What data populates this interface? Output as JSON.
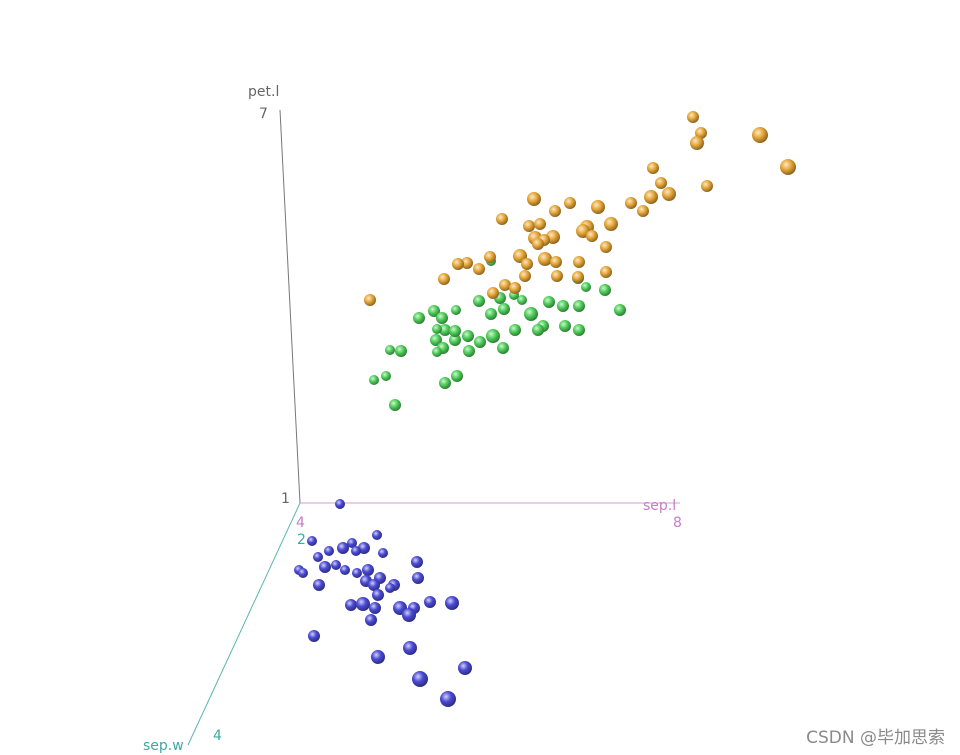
{
  "chart_data": {
    "type": "scatter",
    "subtype": "3d-scatter",
    "axes": {
      "x": {
        "label": "sep.l",
        "ticks": [
          "4",
          "8"
        ],
        "range": [
          4,
          8
        ],
        "color": "#c77cc7"
      },
      "y": {
        "label": "sep.w",
        "ticks": [
          "2",
          "4"
        ],
        "range": [
          2,
          4
        ],
        "color": "#3fa8a2"
      },
      "z": {
        "label": "pet.l",
        "ticks": [
          "1",
          "7"
        ],
        "range": [
          1,
          7
        ],
        "color": "#666666"
      }
    },
    "series": [
      {
        "color": "#4b4bd6",
        "points": [
          [
            340,
            504,
            5
          ],
          [
            377,
            535,
            5
          ],
          [
            312,
            541,
            5
          ],
          [
            364,
            548,
            6
          ],
          [
            352,
            543,
            5
          ],
          [
            343,
            548,
            6
          ],
          [
            329,
            551,
            5
          ],
          [
            356,
            551,
            5
          ],
          [
            383,
            553,
            5
          ],
          [
            318,
            557,
            5
          ],
          [
            417,
            562,
            6
          ],
          [
            336,
            565,
            5
          ],
          [
            325,
            567,
            6
          ],
          [
            299,
            570,
            5
          ],
          [
            368,
            570,
            6
          ],
          [
            303,
            573,
            5
          ],
          [
            345,
            570,
            5
          ],
          [
            357,
            573,
            5
          ],
          [
            380,
            578,
            6
          ],
          [
            418,
            578,
            6
          ],
          [
            366,
            581,
            6
          ],
          [
            319,
            585,
            6
          ],
          [
            394,
            585,
            6
          ],
          [
            374,
            585,
            6
          ],
          [
            390,
            588,
            5
          ],
          [
            378,
            595,
            6
          ],
          [
            351,
            605,
            6
          ],
          [
            363,
            604,
            7
          ],
          [
            375,
            608,
            6
          ],
          [
            400,
            608,
            7
          ],
          [
            414,
            608,
            6
          ],
          [
            430,
            602,
            6
          ],
          [
            452,
            603,
            7
          ],
          [
            409,
            615,
            7
          ],
          [
            371,
            620,
            6
          ],
          [
            314,
            636,
            6
          ],
          [
            378,
            657,
            7
          ],
          [
            410,
            648,
            7
          ],
          [
            465,
            668,
            7
          ],
          [
            420,
            679,
            8
          ],
          [
            448,
            699,
            8
          ]
        ]
      },
      {
        "color": "#4fd05a",
        "points": [
          [
            491,
            261,
            5
          ],
          [
            522,
            300,
            5
          ],
          [
            434,
            311,
            6
          ],
          [
            456,
            310,
            5
          ],
          [
            419,
            318,
            6
          ],
          [
            442,
            318,
            6
          ],
          [
            479,
            301,
            6
          ],
          [
            500,
            298,
            6
          ],
          [
            514,
            295,
            5
          ],
          [
            549,
            302,
            6
          ],
          [
            563,
            306,
            6
          ],
          [
            579,
            306,
            6
          ],
          [
            578,
            278,
            6
          ],
          [
            586,
            287,
            5
          ],
          [
            605,
            290,
            6
          ],
          [
            620,
            310,
            6
          ],
          [
            491,
            314,
            6
          ],
          [
            504,
            309,
            6
          ],
          [
            531,
            314,
            7
          ],
          [
            543,
            326,
            6
          ],
          [
            538,
            330,
            6
          ],
          [
            565,
            326,
            6
          ],
          [
            579,
            330,
            6
          ],
          [
            515,
            330,
            6
          ],
          [
            493,
            336,
            7
          ],
          [
            480,
            342,
            6
          ],
          [
            468,
            336,
            6
          ],
          [
            455,
            340,
            6
          ],
          [
            445,
            330,
            6
          ],
          [
            437,
            329,
            5
          ],
          [
            436,
            340,
            6
          ],
          [
            443,
            348,
            6
          ],
          [
            437,
            352,
            5
          ],
          [
            469,
            351,
            6
          ],
          [
            503,
            348,
            6
          ],
          [
            390,
            350,
            5
          ],
          [
            401,
            351,
            6
          ],
          [
            374,
            380,
            5
          ],
          [
            386,
            376,
            5
          ],
          [
            445,
            383,
            6
          ],
          [
            457,
            376,
            6
          ],
          [
            395,
            405,
            6
          ],
          [
            455,
            331,
            6
          ]
        ]
      },
      {
        "color": "#e8a838",
        "points": [
          [
            693,
            117,
            6
          ],
          [
            701,
            133,
            6
          ],
          [
            697,
            143,
            7
          ],
          [
            760,
            135,
            8
          ],
          [
            788,
            167,
            8
          ],
          [
            653,
            168,
            6
          ],
          [
            661,
            183,
            6
          ],
          [
            669,
            194,
            7
          ],
          [
            707,
            186,
            6
          ],
          [
            651,
            197,
            7
          ],
          [
            643,
            211,
            6
          ],
          [
            631,
            203,
            6
          ],
          [
            598,
            207,
            7
          ],
          [
            611,
            224,
            7
          ],
          [
            587,
            227,
            7
          ],
          [
            583,
            231,
            7
          ],
          [
            592,
            236,
            6
          ],
          [
            606,
            247,
            6
          ],
          [
            570,
            203,
            6
          ],
          [
            555,
            211,
            6
          ],
          [
            534,
            199,
            7
          ],
          [
            502,
            219,
            6
          ],
          [
            529,
            226,
            6
          ],
          [
            540,
            224,
            6
          ],
          [
            553,
            237,
            7
          ],
          [
            535,
            238,
            7
          ],
          [
            544,
            240,
            6
          ],
          [
            538,
            244,
            6
          ],
          [
            520,
            256,
            7
          ],
          [
            545,
            259,
            7
          ],
          [
            556,
            262,
            6
          ],
          [
            579,
            262,
            6
          ],
          [
            606,
            272,
            6
          ],
          [
            578,
            277,
            6
          ],
          [
            557,
            276,
            6
          ],
          [
            527,
            264,
            6
          ],
          [
            525,
            276,
            6
          ],
          [
            505,
            285,
            6
          ],
          [
            493,
            293,
            6
          ],
          [
            515,
            288,
            6
          ],
          [
            490,
            257,
            6
          ],
          [
            479,
            269,
            6
          ],
          [
            467,
            263,
            6
          ],
          [
            458,
            264,
            6
          ],
          [
            444,
            279,
            6
          ],
          [
            370,
            300,
            6
          ]
        ]
      }
    ]
  },
  "watermark": "CSDN @毕加思索"
}
